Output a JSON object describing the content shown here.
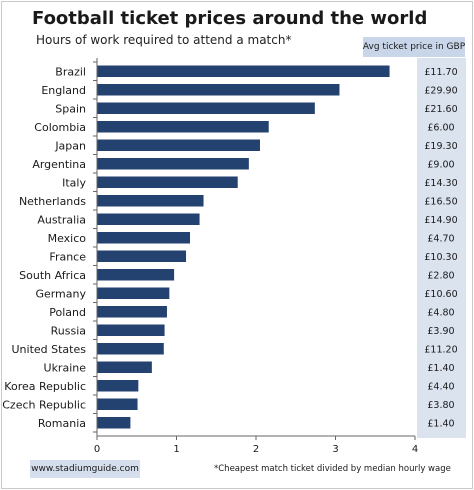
{
  "chart_data": {
    "type": "bar",
    "orientation": "horizontal",
    "title": "Football ticket prices around the world",
    "subtitle": "Hours of work required to attend a match*",
    "categories": [
      "Brazil",
      "England",
      "Spain",
      "Colombia",
      "Japan",
      "Argentina",
      "Italy",
      "Netherlands",
      "Australia",
      "Mexico",
      "France",
      "South Africa",
      "Germany",
      "Poland",
      "Russia",
      "United States",
      "Ukraine",
      "Korea Republic",
      "Czech Republic",
      "Romania"
    ],
    "values": [
      3.68,
      3.05,
      2.74,
      2.16,
      2.05,
      1.91,
      1.77,
      1.34,
      1.29,
      1.17,
      1.12,
      0.97,
      0.91,
      0.88,
      0.85,
      0.84,
      0.69,
      0.52,
      0.51,
      0.42
    ],
    "prices_header": "Avg ticket price in GBP",
    "prices": [
      "£11.70",
      "£29.90",
      "£21.60",
      "£6.00",
      "£19.30",
      "£9.00",
      "£14.30",
      "£16.50",
      "£14.90",
      "£4.70",
      "£10.30",
      "£2.80",
      "£10.60",
      "£4.80",
      "£3.90",
      "£11.20",
      "£1.40",
      "£4.40",
      "£3.80",
      "£1.40"
    ],
    "xlim": [
      0,
      4
    ],
    "xticks": [
      "0",
      "1",
      "2",
      "3",
      "4"
    ],
    "grid": false,
    "bar_color": "#23426f",
    "price_panel_color": "#dbe3ef"
  },
  "footer": {
    "website": "www.stadiumguide.com",
    "footnote": "*Cheapest match ticket divided by median hourly wage"
  }
}
